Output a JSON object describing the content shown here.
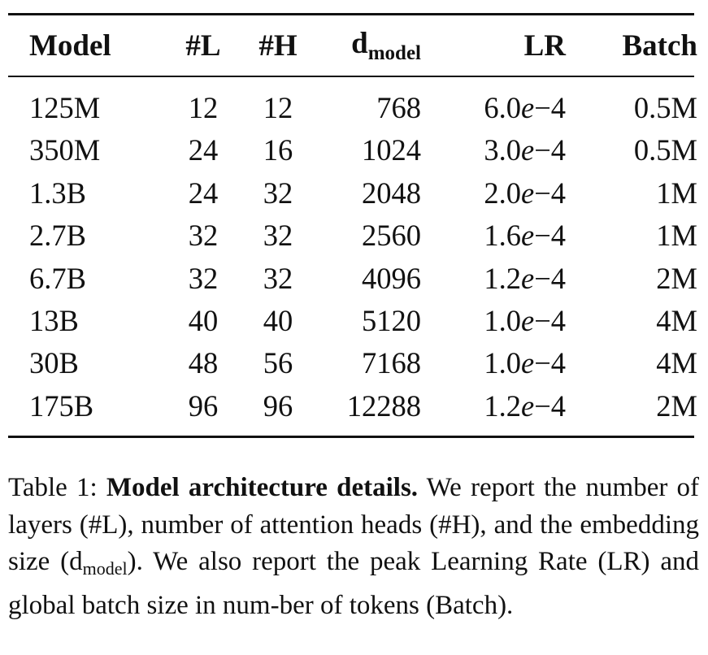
{
  "table": {
    "headers": {
      "model": "Model",
      "layers": "#L",
      "heads": "#H",
      "d_model_base": "d",
      "d_model_sub": "model",
      "lr": "LR",
      "batch": "Batch"
    },
    "rows": [
      {
        "model": "125M",
        "layers": "12",
        "heads": "12",
        "d_model": "768",
        "lr_mant": "6.0",
        "lr_e": "e",
        "lr_exp": "−4",
        "batch": "0.5M"
      },
      {
        "model": "350M",
        "layers": "24",
        "heads": "16",
        "d_model": "1024",
        "lr_mant": "3.0",
        "lr_e": "e",
        "lr_exp": "−4",
        "batch": "0.5M"
      },
      {
        "model": "1.3B",
        "layers": "24",
        "heads": "32",
        "d_model": "2048",
        "lr_mant": "2.0",
        "lr_e": "e",
        "lr_exp": "−4",
        "batch": "1M"
      },
      {
        "model": "2.7B",
        "layers": "32",
        "heads": "32",
        "d_model": "2560",
        "lr_mant": "1.6",
        "lr_e": "e",
        "lr_exp": "−4",
        "batch": "1M"
      },
      {
        "model": "6.7B",
        "layers": "32",
        "heads": "32",
        "d_model": "4096",
        "lr_mant": "1.2",
        "lr_e": "e",
        "lr_exp": "−4",
        "batch": "2M"
      },
      {
        "model": "13B",
        "layers": "40",
        "heads": "40",
        "d_model": "5120",
        "lr_mant": "1.0",
        "lr_e": "e",
        "lr_exp": "−4",
        "batch": "4M"
      },
      {
        "model": "30B",
        "layers": "48",
        "heads": "56",
        "d_model": "7168",
        "lr_mant": "1.0",
        "lr_e": "e",
        "lr_exp": "−4",
        "batch": "4M"
      },
      {
        "model": "175B",
        "layers": "96",
        "heads": "96",
        "d_model": "12288",
        "lr_mant": "1.2",
        "lr_e": "e",
        "lr_exp": "−4",
        "batch": "2M"
      }
    ]
  },
  "caption": {
    "label": "Table 1:",
    "bold": "Model architecture details.",
    "text_1": "We report the number of layers (#L), number of attention heads (#H), and the embedding size (d",
    "sub": "model",
    "text_2": "). We also report the peak Learning Rate (LR) and global batch size in num-ber of tokens (Batch)."
  }
}
